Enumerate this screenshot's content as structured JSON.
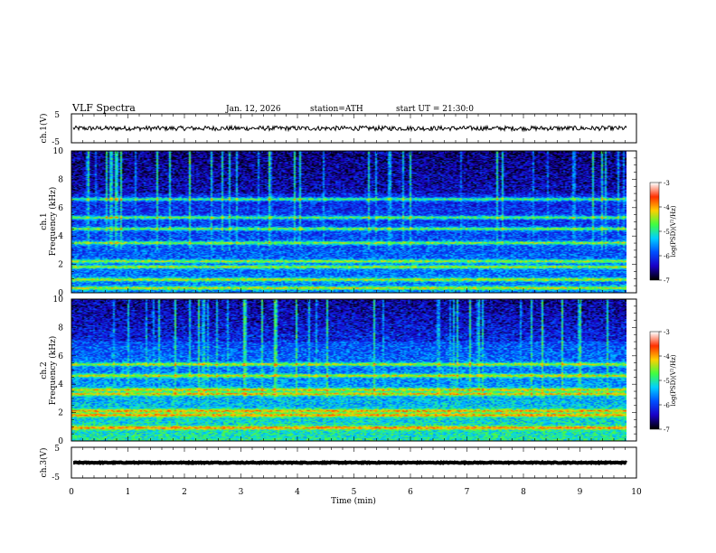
{
  "header": {
    "title": "VLF  Spectra",
    "date": "Jan. 12, 2026",
    "station": "station=ATH",
    "start": "start  UT  =   21:30:0"
  },
  "xaxis": {
    "label": "Time  (min)",
    "ticks": [
      "0",
      "1",
      "2",
      "3",
      "4",
      "5",
      "6",
      "7",
      "8",
      "9",
      "10"
    ],
    "range": [
      0,
      10
    ]
  },
  "colorbar_top": {
    "label": "log(PSD)(V²/Hz)",
    "ticks": [
      "-3",
      "-4",
      "-5",
      "-6",
      "-7"
    ],
    "range": [
      -7,
      -3
    ]
  },
  "colorbar_bottom": {
    "label": "log(PSD)(V²/Hz)",
    "ticks": [
      "-3",
      "-4",
      "-5",
      "-6",
      "-7"
    ],
    "range": [
      -7,
      -3
    ]
  },
  "colors": {
    "background": "#ffffff",
    "axis": "#000000",
    "colormap": [
      "#000000",
      "#1a00c8",
      "#0050ff",
      "#00d0ff",
      "#40ff40",
      "#ffd000",
      "#ff3000",
      "#ffffff"
    ]
  },
  "chart_data": [
    {
      "type": "line",
      "ylabel": "ch.1(V)",
      "yticks": [
        "5",
        "-5"
      ],
      "ylim": [
        -5,
        5
      ],
      "xlim": [
        0,
        10
      ],
      "end_time_min": 9.83,
      "mean_value": 0,
      "noise_amplitude": 0.8
    },
    {
      "type": "heatmap",
      "ylabel": "ch.1\nFrequency (kHz)",
      "ylabel_line1": "ch.1",
      "ylabel_line2": "Frequency (kHz)",
      "yticks": [
        "0",
        "2",
        "4",
        "6",
        "8",
        "10"
      ],
      "ylim": [
        0,
        10
      ],
      "xlim": [
        0,
        10
      ],
      "end_time_min": 9.83,
      "colorbar_range": [
        -7,
        -3
      ],
      "background_level_low_kHz": -5.6,
      "background_level_high_kHz": -6.4,
      "bands_kHz": [
        0.3,
        0.9,
        1.8,
        2.2,
        3.5,
        4.5,
        5.3,
        6.6
      ],
      "impulsive_noise": true
    },
    {
      "type": "heatmap",
      "ylabel": "ch.2\nFrequency (kHz)",
      "ylabel_line1": "ch.2",
      "ylabel_line2": "Frequency (kHz)",
      "yticks": [
        "0",
        "2",
        "4",
        "6",
        "8",
        "10"
      ],
      "ylim": [
        0,
        10
      ],
      "xlim": [
        0,
        10
      ],
      "end_time_min": 9.83,
      "colorbar_range": [
        -7,
        -3
      ],
      "background_level_low_kHz": -5.0,
      "background_level_high_kHz": -6.3,
      "bands_kHz": [
        0.9,
        1.8,
        2.1,
        3.3,
        3.6,
        4.6,
        5.4
      ],
      "impulsive_noise": true
    },
    {
      "type": "line",
      "ylabel": "ch.3(V)",
      "yticks": [
        "5",
        "-5"
      ],
      "ylim": [
        -5,
        5
      ],
      "xlim": [
        0,
        10
      ],
      "end_time_min": 9.83,
      "mean_value": 0,
      "noise_amplitude": 0.15
    }
  ]
}
